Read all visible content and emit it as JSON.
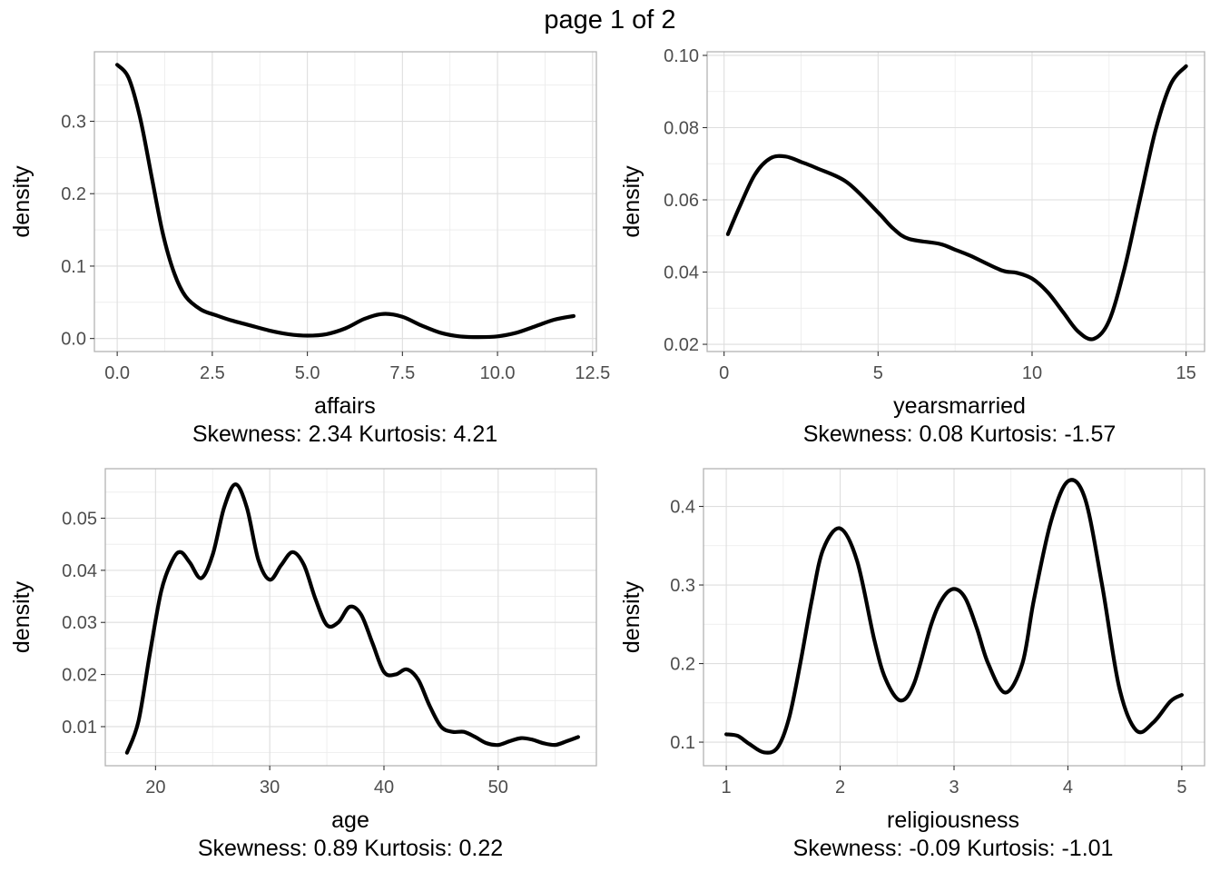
{
  "page_title": "page 1 of 2",
  "chart_data": [
    {
      "type": "line",
      "xlabel": "affairs",
      "ylabel": "density",
      "caption": "Skewness: 2.34 Kurtosis: 4.21",
      "xlim": [
        -0.6,
        12.6
      ],
      "ylim": [
        -0.018,
        0.396
      ],
      "x_ticks": [
        0,
        2.5,
        5,
        7.5,
        10,
        12.5
      ],
      "x_tick_labels": [
        "0.0",
        "2.5",
        "5.0",
        "7.5",
        "10.0",
        "12.5"
      ],
      "y_ticks": [
        0,
        0.1,
        0.2,
        0.3
      ],
      "y_tick_labels": [
        "0.0",
        "0.1",
        "0.2",
        "0.3"
      ],
      "grid": true,
      "series": [
        {
          "x": [
            0,
            0.3,
            0.6,
            0.9,
            1.2,
            1.5,
            1.8,
            2.2,
            2.6,
            3.0,
            3.5,
            4.0,
            4.5,
            5.0,
            5.5,
            6.0,
            6.5,
            7.0,
            7.5,
            8.0,
            8.5,
            9.0,
            9.5,
            10.0,
            10.5,
            11.0,
            11.5,
            12.0
          ],
          "y": [
            0.378,
            0.36,
            0.305,
            0.225,
            0.145,
            0.09,
            0.058,
            0.04,
            0.032,
            0.025,
            0.018,
            0.011,
            0.006,
            0.004,
            0.006,
            0.014,
            0.027,
            0.034,
            0.03,
            0.018,
            0.008,
            0.003,
            0.002,
            0.003,
            0.008,
            0.017,
            0.026,
            0.031
          ]
        }
      ]
    },
    {
      "type": "line",
      "xlabel": "yearsmarried",
      "ylabel": "density",
      "caption": "Skewness: 0.08 Kurtosis: -1.57",
      "xlim": [
        -0.55,
        15.6
      ],
      "ylim": [
        0.018,
        0.101
      ],
      "x_ticks": [
        0,
        5,
        10,
        15
      ],
      "x_tick_labels": [
        "0",
        "5",
        "10",
        "15"
      ],
      "y_ticks": [
        0.02,
        0.04,
        0.06,
        0.08,
        0.1
      ],
      "y_tick_labels": [
        "0.02",
        "0.04",
        "0.06",
        "0.08",
        "0.10"
      ],
      "grid": true,
      "series": [
        {
          "x": [
            0.125,
            0.5,
            1.0,
            1.5,
            2.0,
            2.5,
            3.0,
            4.0,
            5.0,
            5.5,
            6.0,
            7.0,
            7.5,
            8.0,
            9.0,
            9.5,
            10.0,
            10.5,
            11.0,
            11.5,
            12.0,
            12.5,
            13.0,
            13.5,
            14.0,
            14.5,
            15.0
          ],
          "y": [
            0.0505,
            0.058,
            0.067,
            0.0715,
            0.072,
            0.0705,
            0.0688,
            0.0648,
            0.0565,
            0.052,
            0.0492,
            0.0478,
            0.0462,
            0.0445,
            0.0405,
            0.0398,
            0.0382,
            0.0345,
            0.029,
            0.0235,
            0.0215,
            0.0265,
            0.041,
            0.06,
            0.079,
            0.092,
            0.097
          ]
        }
      ]
    },
    {
      "type": "line",
      "xlabel": "age",
      "ylabel": "density",
      "caption": "Skewness: 0.89 Kurtosis: 0.22",
      "xlim": [
        15.6,
        58.6
      ],
      "ylim": [
        0.0025,
        0.0595
      ],
      "x_ticks": [
        20,
        30,
        40,
        50
      ],
      "x_tick_labels": [
        "20",
        "30",
        "40",
        "50"
      ],
      "y_ticks": [
        0.01,
        0.02,
        0.03,
        0.04,
        0.05
      ],
      "y_tick_labels": [
        "0.01",
        "0.02",
        "0.03",
        "0.04",
        "0.05"
      ],
      "grid": true,
      "series": [
        {
          "x": [
            17.5,
            18.5,
            19.5,
            20.5,
            21.5,
            22.2,
            23.0,
            24.0,
            25.0,
            26.0,
            27.0,
            28.0,
            29.0,
            30.0,
            31.0,
            32.0,
            33.0,
            34.0,
            35.0,
            36.0,
            37.0,
            38.0,
            39.0,
            40.0,
            41.0,
            42.0,
            43.0,
            44.0,
            45.0,
            46.0,
            47.0,
            48.0,
            49.0,
            50.0,
            51.0,
            52.0,
            53.0,
            54.0,
            55.0,
            56.0,
            57.0
          ],
          "y": [
            0.005,
            0.011,
            0.024,
            0.036,
            0.042,
            0.0435,
            0.0415,
            0.0385,
            0.043,
            0.052,
            0.0565,
            0.052,
            0.042,
            0.0382,
            0.041,
            0.0435,
            0.041,
            0.0345,
            0.0295,
            0.03,
            0.033,
            0.0315,
            0.026,
            0.0205,
            0.02,
            0.021,
            0.019,
            0.014,
            0.01,
            0.009,
            0.009,
            0.008,
            0.0068,
            0.0065,
            0.0072,
            0.0078,
            0.0075,
            0.0068,
            0.0065,
            0.0072,
            0.008
          ]
        }
      ]
    },
    {
      "type": "line",
      "xlabel": "religiousness",
      "ylabel": "density",
      "caption": "Skewness: -0.09 Kurtosis: -1.01",
      "xlim": [
        0.8,
        5.2
      ],
      "ylim": [
        0.07,
        0.448
      ],
      "x_ticks": [
        1,
        2,
        3,
        4,
        5
      ],
      "x_tick_labels": [
        "1",
        "2",
        "3",
        "4",
        "5"
      ],
      "y_ticks": [
        0.1,
        0.2,
        0.3,
        0.4
      ],
      "y_tick_labels": [
        "0.1",
        "0.2",
        "0.3",
        "0.4"
      ],
      "grid": true,
      "series": [
        {
          "x": [
            1.0,
            1.1,
            1.2,
            1.33,
            1.45,
            1.55,
            1.65,
            1.75,
            1.85,
            2.0,
            2.15,
            2.3,
            2.4,
            2.53,
            2.65,
            2.8,
            2.9,
            3.0,
            3.1,
            3.2,
            3.3,
            3.45,
            3.6,
            3.7,
            3.85,
            4.0,
            4.15,
            4.3,
            4.45,
            4.6,
            4.75,
            4.9,
            5.0
          ],
          "y": [
            0.11,
            0.108,
            0.098,
            0.087,
            0.093,
            0.13,
            0.2,
            0.28,
            0.345,
            0.372,
            0.33,
            0.23,
            0.18,
            0.153,
            0.175,
            0.25,
            0.283,
            0.295,
            0.283,
            0.245,
            0.2,
            0.163,
            0.2,
            0.28,
            0.38,
            0.432,
            0.41,
            0.3,
            0.17,
            0.115,
            0.125,
            0.152,
            0.16
          ]
        }
      ]
    }
  ]
}
